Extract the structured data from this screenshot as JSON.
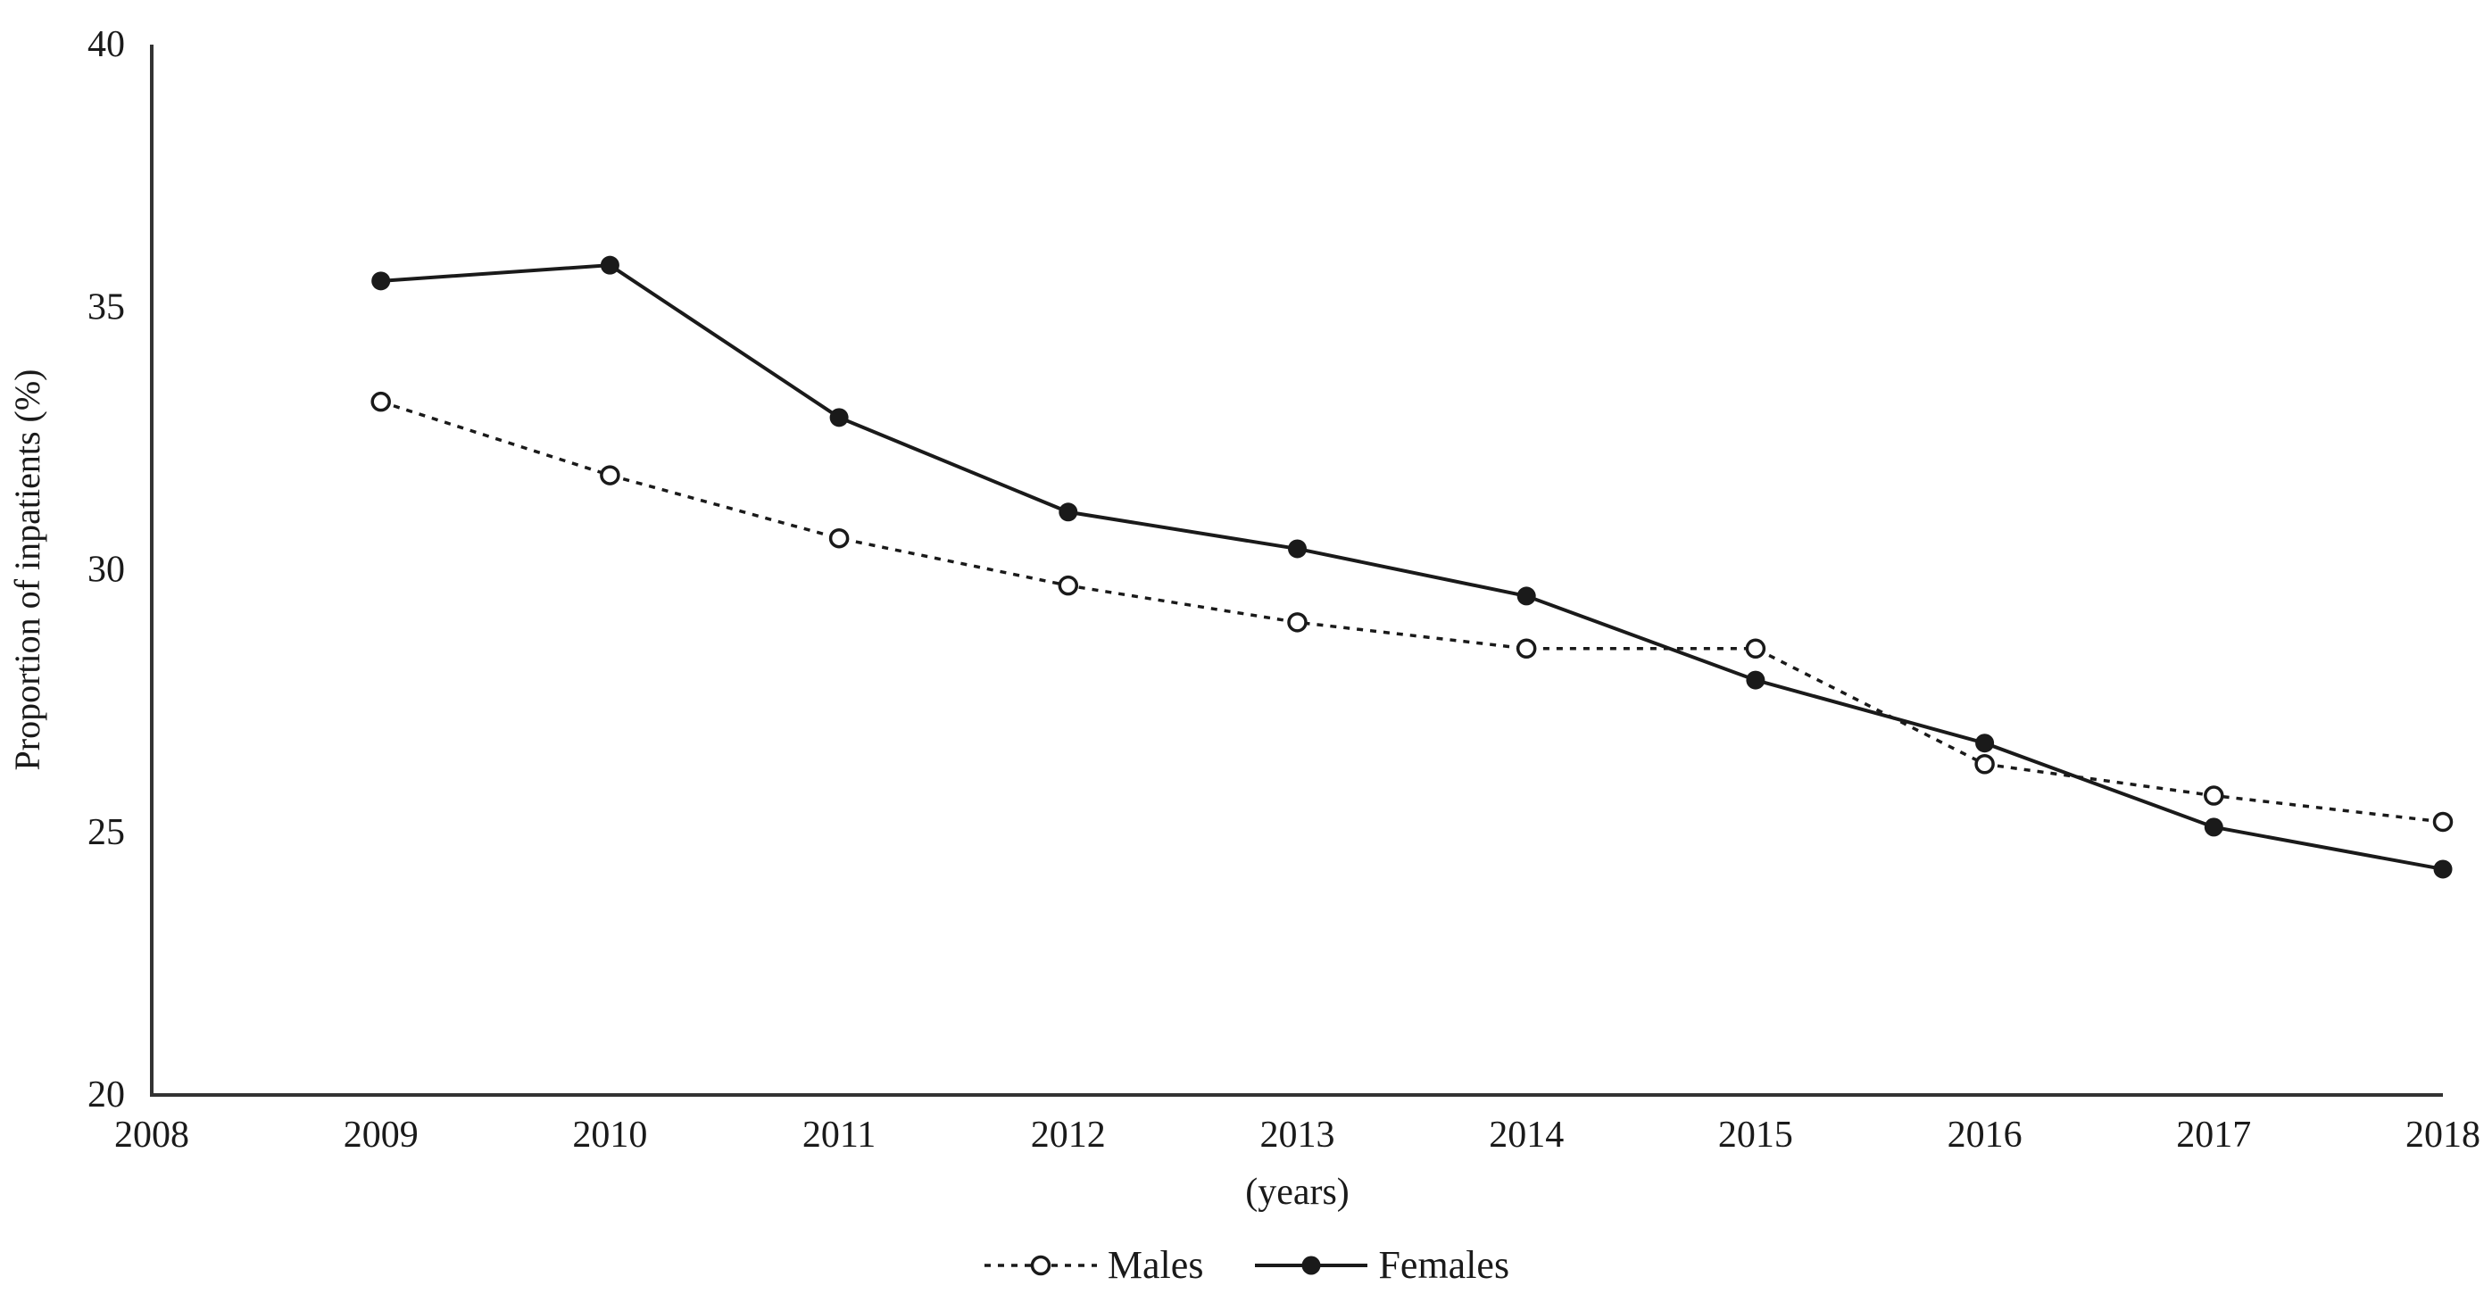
{
  "chart_data": {
    "type": "line",
    "title": "",
    "xlabel": "(years)",
    "ylabel": "Proportion of inpatients (%)",
    "xlim": [
      2008,
      2018
    ],
    "ylim": [
      20,
      40
    ],
    "x_ticks": [
      2008,
      2009,
      2010,
      2011,
      2012,
      2013,
      2014,
      2015,
      2016,
      2017,
      2018
    ],
    "y_ticks": [
      20,
      25,
      30,
      35,
      40
    ],
    "grid": false,
    "legend_position": "bottom-center",
    "x": [
      2009,
      2010,
      2011,
      2012,
      2013,
      2014,
      2015,
      2016,
      2017,
      2018
    ],
    "series": [
      {
        "name": "Males",
        "line_style": "dashed",
        "marker": "open-circle",
        "values": [
          33.2,
          31.8,
          30.6,
          29.7,
          29.0,
          28.5,
          28.5,
          26.3,
          25.7,
          25.2
        ]
      },
      {
        "name": "Females",
        "line_style": "solid",
        "marker": "filled-circle",
        "values": [
          35.5,
          35.8,
          32.9,
          31.1,
          30.4,
          29.5,
          27.9,
          26.7,
          25.1,
          24.3
        ]
      }
    ],
    "colors": {
      "line": "#1a1a1a",
      "axis": "#333333",
      "text": "#1a1a1a",
      "background": "#ffffff"
    }
  }
}
